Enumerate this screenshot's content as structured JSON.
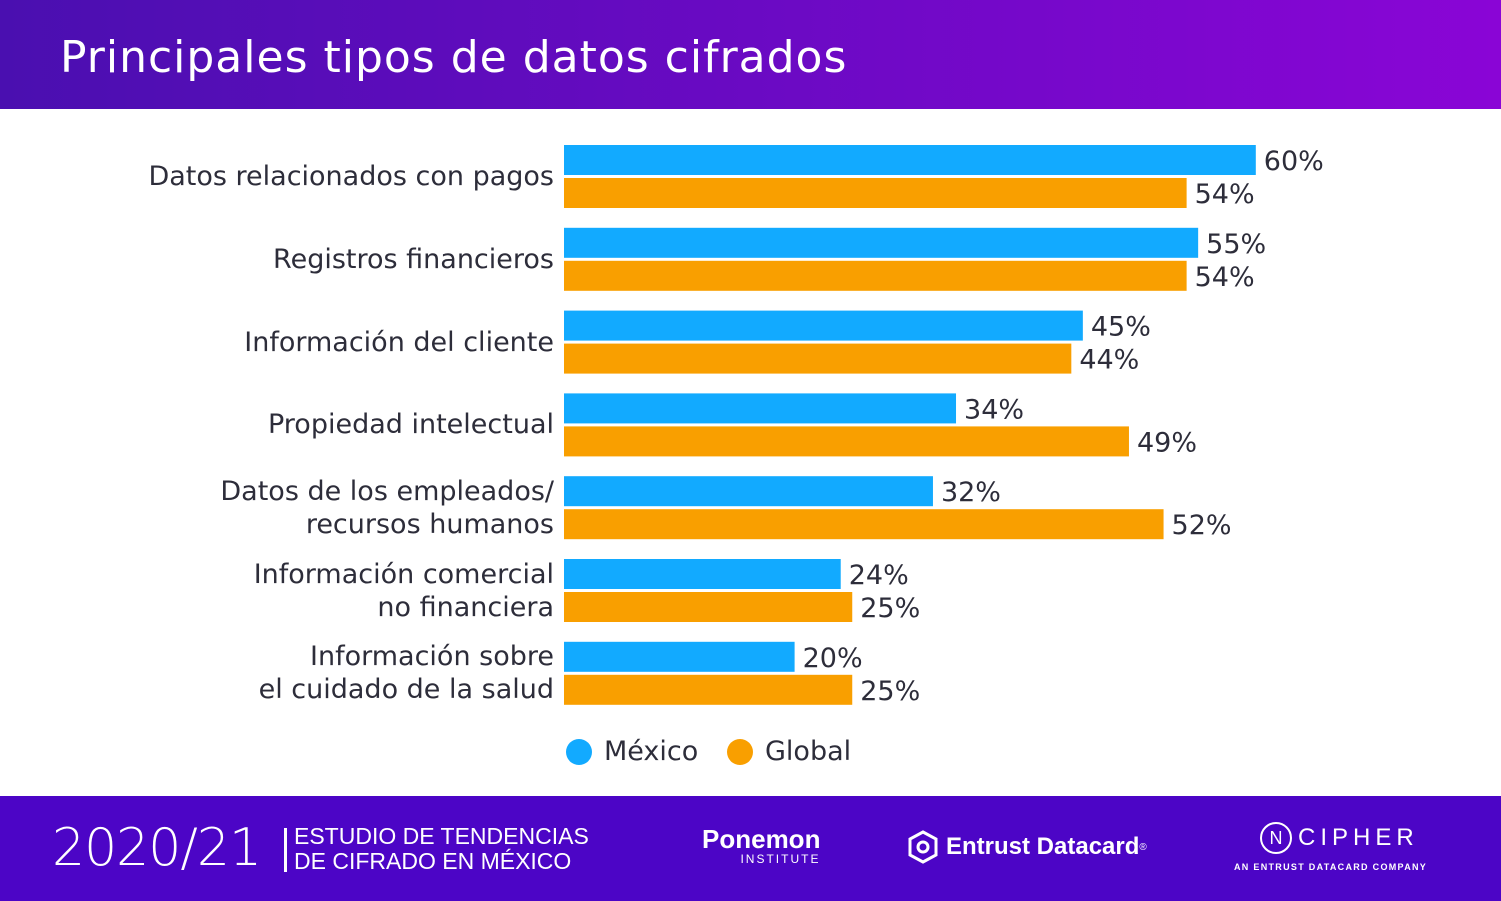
{
  "header": {
    "title": "Principales tipos de datos cifrados"
  },
  "chart_data": {
    "type": "bar",
    "orientation": "horizontal",
    "title": "Principales tipos de datos cifrados",
    "categories": [
      "Datos relacionados con pagos",
      "Registros financieros",
      "Información del cliente",
      "Propiedad intelectual",
      "Datos de los empleados/ recursos humanos",
      "Información comercial no financiera",
      "Información sobre el cuidado de la salud"
    ],
    "category_lines": [
      [
        "Datos relacionados con pagos"
      ],
      [
        "Registros financieros"
      ],
      [
        "Información del cliente"
      ],
      [
        "Propiedad intelectual"
      ],
      [
        "Datos de los empleados/",
        "recursos humanos"
      ],
      [
        "Información comercial",
        "no financiera"
      ],
      [
        "Información sobre",
        "el cuidado de la salud"
      ]
    ],
    "series": [
      {
        "name": "México",
        "color": "#12aaff",
        "values": [
          60,
          55,
          45,
          34,
          32,
          24,
          20
        ],
        "labels": [
          "60%",
          "55%",
          "45%",
          "34%",
          "32%",
          "24%",
          "20%"
        ]
      },
      {
        "name": "Global",
        "color": "#f99f00",
        "values": [
          54,
          54,
          44,
          49,
          52,
          25,
          25
        ],
        "labels": [
          "54%",
          "54%",
          "44%",
          "49%",
          "52%",
          "25%",
          "25%"
        ]
      }
    ],
    "unit": "%",
    "grid": false,
    "legend": "bottom"
  },
  "footer": {
    "year": "2020/21",
    "study_line1": "ESTUDIO DE TENDENCIAS",
    "study_line2": "DE CIFRADO EN MÉXICO",
    "ponemon": "Ponemon",
    "ponemon_sub": "INSTITUTE",
    "entrust": "Entrust Datacard",
    "ncipher": "CIPHER",
    "ncipher_n": "N",
    "ncipher_sub": "AN ENTRUST DATACARD COMPANY"
  }
}
